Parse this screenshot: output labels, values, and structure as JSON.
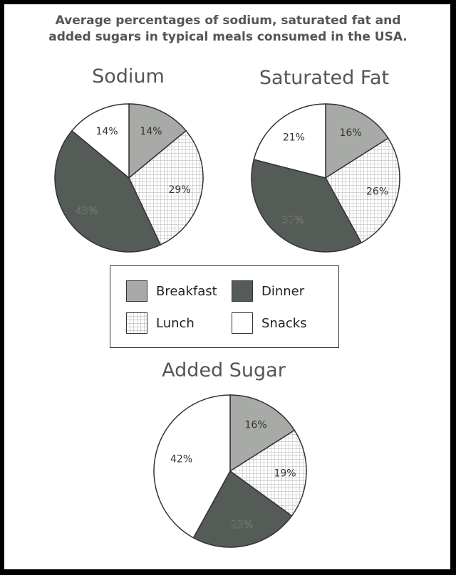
{
  "title_line1": "Average percentages of sodium, saturated fat and",
  "title_line2": "added sugars in typical meals consumed in the USA.",
  "colors": {
    "breakfast": "#a7aaa6",
    "lunch": "#ffffff",
    "dinner": "#555b56",
    "snacks": "#ffffff",
    "outline": "#333333"
  },
  "legend": {
    "breakfast": "Breakfast",
    "dinner": "Dinner",
    "lunch": "Lunch",
    "snacks": "Snacks"
  },
  "chart_data": [
    {
      "type": "pie",
      "title": "Sodium",
      "categories": [
        "Breakfast",
        "Lunch",
        "Dinner",
        "Snacks"
      ],
      "values": [
        14,
        29,
        43,
        14
      ],
      "labels": [
        "14%",
        "29%",
        "43%",
        "14%"
      ]
    },
    {
      "type": "pie",
      "title": "Saturated Fat",
      "categories": [
        "Breakfast",
        "Lunch",
        "Dinner",
        "Snacks"
      ],
      "values": [
        16,
        26,
        37,
        21
      ],
      "labels": [
        "16%",
        "26%",
        "37%",
        "21%"
      ]
    },
    {
      "type": "pie",
      "title": "Added Sugar",
      "categories": [
        "Breakfast",
        "Lunch",
        "Dinner",
        "Snacks"
      ],
      "values": [
        16,
        19,
        23,
        42
      ],
      "labels": [
        "16%",
        "19%",
        "23%",
        "42%"
      ]
    }
  ]
}
